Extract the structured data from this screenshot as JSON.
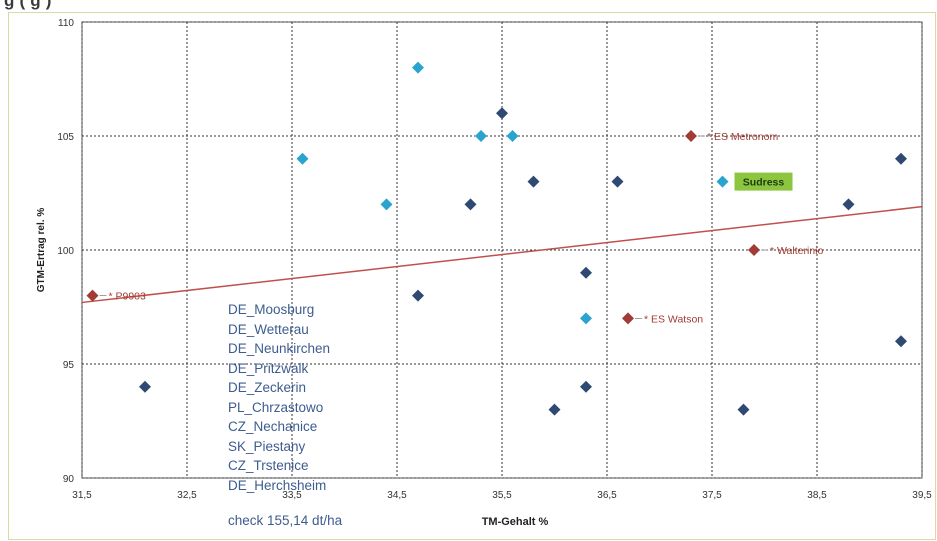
{
  "header": {
    "partial_title": "g            (                                   g  )"
  },
  "site_list": [
    "DE_Moosburg",
    "DE_Wetterau",
    "DE_Neunkirchen",
    "DE_Pritzwalk",
    "DE_Zeckerin",
    "PL_Chrzastowo",
    "CZ_Nechanice",
    "SK_Piestany",
    "CZ_Trstenice",
    "DE_Herchsheim"
  ],
  "check_text": "check 155,14 dt/ha",
  "colors": {
    "navy_points": "#2e4a72",
    "cyan_points": "#2aa3cf",
    "red_points": "#a23b35",
    "trendline": "#c0504d",
    "grid": "#333333",
    "site_text": "#3d5c8f",
    "highlight_box": "#8cc63f"
  },
  "chart_data": {
    "type": "scatter",
    "xlabel": "TM-Gehalt %",
    "ylabel": "GTM-Ertrag rel. %",
    "xlim": [
      31.5,
      39.5
    ],
    "ylim": [
      90,
      110
    ],
    "x_ticks": [
      "31,5",
      "32,5",
      "33,5",
      "34,5",
      "35,5",
      "36,5",
      "37,5",
      "38,5",
      "39,5"
    ],
    "y_ticks": [
      "90",
      "95",
      "100",
      "105",
      "110"
    ],
    "grid": true,
    "series": [
      {
        "color": "navy",
        "points": [
          {
            "x": 32.1,
            "y": 94
          },
          {
            "x": 34.7,
            "y": 98
          },
          {
            "x": 35.2,
            "y": 102
          },
          {
            "x": 35.5,
            "y": 106
          },
          {
            "x": 35.8,
            "y": 103
          },
          {
            "x": 36.0,
            "y": 93
          },
          {
            "x": 36.3,
            "y": 99
          },
          {
            "x": 36.3,
            "y": 94
          },
          {
            "x": 36.6,
            "y": 103
          },
          {
            "x": 37.8,
            "y": 93
          },
          {
            "x": 38.8,
            "y": 102
          },
          {
            "x": 39.3,
            "y": 104
          },
          {
            "x": 39.3,
            "y": 96
          }
        ]
      },
      {
        "color": "cyan",
        "points": [
          {
            "x": 33.6,
            "y": 104
          },
          {
            "x": 34.4,
            "y": 102
          },
          {
            "x": 34.7,
            "y": 108
          },
          {
            "x": 35.3,
            "y": 105
          },
          {
            "x": 35.6,
            "y": 105
          },
          {
            "x": 36.3,
            "y": 97
          },
          {
            "x": 37.6,
            "y": 103
          }
        ]
      },
      {
        "color": "red",
        "points": [
          {
            "x": 31.6,
            "y": 98,
            "label": "* P9903"
          },
          {
            "x": 37.3,
            "y": 105,
            "label": "* ES Metronom"
          },
          {
            "x": 37.9,
            "y": 100,
            "label": "* Walterinio"
          },
          {
            "x": 36.7,
            "y": 97,
            "label": "* ES Watson"
          }
        ]
      }
    ],
    "highlight_label": {
      "x": 37.6,
      "y": 103,
      "text": "Sudress"
    },
    "trendline": {
      "x": [
        31.5,
        39.5
      ],
      "y": [
        97.7,
        101.9
      ]
    }
  }
}
